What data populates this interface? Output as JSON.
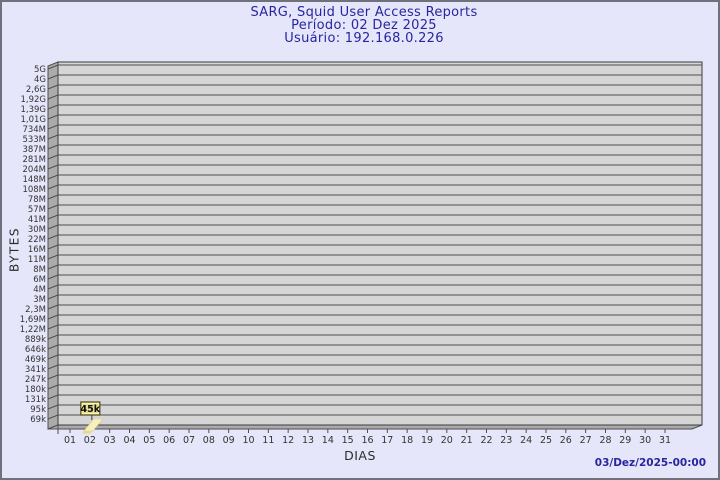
{
  "page": {
    "background_color": "#E6E6FA",
    "border_color": "#71717D",
    "accent_color": "#2626A0"
  },
  "chart_data": {
    "type": "bar",
    "title": "SARG, Squid User Access Reports",
    "period": "Período: 02 Dez 2025",
    "user": "Usuário: 192.168.0.226",
    "xlabel": "DIAS",
    "ylabel": "BYTES",
    "y_scale": "log",
    "grid": true,
    "legend_position": "none",
    "y_tick_labels": [
      "5G",
      "4G",
      "2,6G",
      "1,92G",
      "1,39G",
      "1,01G",
      "734M",
      "533M",
      "387M",
      "281M",
      "204M",
      "148M",
      "108M",
      "78M",
      "57M",
      "41M",
      "30M",
      "22M",
      "16M",
      "11M",
      "8M",
      "6M",
      "4M",
      "3M",
      "2,3M",
      "1,69M",
      "1,22M",
      "889k",
      "646k",
      "469k",
      "341k",
      "247k",
      "180k",
      "131k",
      "95k",
      "69k"
    ],
    "categories": [
      "01",
      "02",
      "03",
      "04",
      "05",
      "06",
      "07",
      "08",
      "09",
      "10",
      "11",
      "12",
      "13",
      "14",
      "15",
      "16",
      "17",
      "18",
      "19",
      "20",
      "21",
      "22",
      "23",
      "24",
      "25",
      "26",
      "27",
      "28",
      "29",
      "30",
      "31"
    ],
    "bars": [
      {
        "day": "02",
        "value_label": "45k",
        "value_bytes": 45000
      }
    ],
    "footer_timestamp": "03/Dez/2025-00:00",
    "colors": {
      "plot_bg": "#D5D5D5",
      "face_3d": "#ABABAB",
      "grid": "#4F4F4F",
      "axis_text": "#333333",
      "bar_fill": "#F6EFBE",
      "bar_base": "#E6D98A",
      "bar_label_bg": "#E9DD90",
      "bar_label_border": "#4A4A12"
    }
  }
}
